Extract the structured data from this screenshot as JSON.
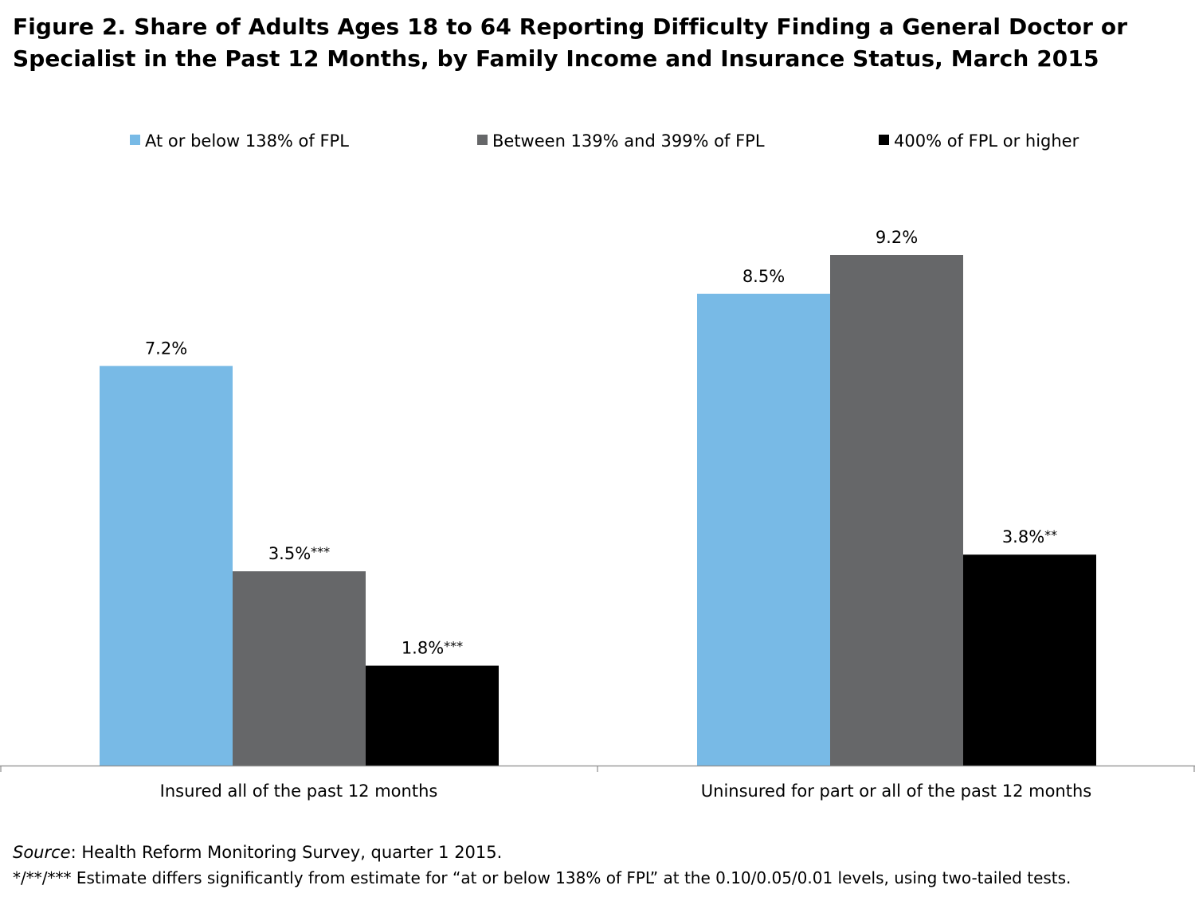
{
  "figure": {
    "title_line1": "Figure 2. Share of Adults Ages 18 to 64 Reporting Difficulty Finding a General Doctor or",
    "title_line2": "Specialist in the Past 12 Months, by Family Income and Insurance Status, March 2015",
    "source_label": "Source",
    "source_text": ": Health Reform Monitoring Survey, quarter 1 2015.",
    "note": "*/**/*** Estimate differs significantly from estimate for “at or below 138% of FPL” at the 0.10/0.05/0.01 levels, using two-tailed tests."
  },
  "chart_data": {
    "type": "bar",
    "categories": [
      "Insured all of the past 12 months",
      "Uninsured for part or all of the past 12 months"
    ],
    "series": [
      {
        "name": "At or below 138% of FPL",
        "color": "#78BAE6",
        "values": [
          7.2,
          8.5
        ],
        "labels": [
          "7.2%",
          "8.5%"
        ]
      },
      {
        "name": "Between 139% and 399% of FPL",
        "color": "#666769",
        "values": [
          3.5,
          9.2
        ],
        "labels": [
          "3.5%***",
          "9.2%"
        ]
      },
      {
        "name": "400% of FPL or higher",
        "color": "#000000",
        "values": [
          1.8,
          3.8
        ],
        "labels": [
          "1.8%***",
          "3.8%**"
        ]
      }
    ],
    "ylim": [
      0,
      9.2
    ],
    "legend_position": "top",
    "grid": false,
    "value_unit": "%"
  }
}
